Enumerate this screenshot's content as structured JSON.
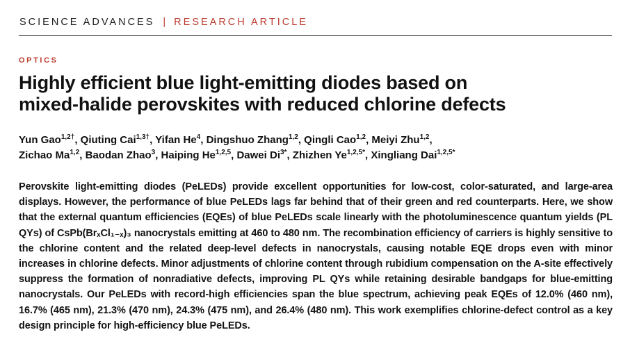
{
  "colors": {
    "accent_red": "#bc3a2e",
    "text_dark": "#111111"
  },
  "masthead": {
    "journal": "SCIENCE ADVANCES",
    "separator": "|",
    "article_type": "RESEARCH ARTICLE"
  },
  "article": {
    "section": "OPTICS",
    "title_lines": [
      "Highly efficient blue light-emitting diodes based on",
      "mixed-halide perovskites with reduced chlorine defects"
    ],
    "author_lines": [
      [
        {
          "name": "Yun Gao",
          "sup": "1,2†"
        },
        {
          "name": "Qiuting Cai",
          "sup": "1,3†"
        },
        {
          "name": "Yifan He",
          "sup": "4"
        },
        {
          "name": "Dingshuo Zhang",
          "sup": "1,2"
        },
        {
          "name": "Qingli Cao",
          "sup": "1,2"
        },
        {
          "name": "Meiyi Zhu",
          "sup": "1,2"
        }
      ],
      [
        {
          "name": "Zichao Ma",
          "sup": "1,2"
        },
        {
          "name": "Baodan Zhao",
          "sup": "3"
        },
        {
          "name": "Haiping He",
          "sup": "1,2,5"
        },
        {
          "name": "Dawei Di",
          "sup": "3*"
        },
        {
          "name": "Zhizhen Ye",
          "sup": "1,2,5*"
        },
        {
          "name": "Xingliang Dai",
          "sup": "1,2,5*"
        }
      ]
    ],
    "abstract": "Perovskite light-emitting diodes (PeLEDs) provide excellent opportunities for low-cost, color-saturated, and large-area displays. However, the performance of blue PeLEDs lags far behind that of their green and red counterparts. Here, we show that the external quantum efficiencies (EQEs) of blue PeLEDs scale linearly with the photoluminescence quantum yields (PL QYs) of CsPb(BrₓCl₁₋ₓ)₃ nanocrystals emitting at 460 to 480 nm. The recombination efficiency of carriers is highly sensitive to the chlorine content and the related deep-level defects in nanocrystals, causing notable EQE drops even with minor increases in chlorine defects. Minor adjustments of chlorine content through rubidium compensation on the A-site effectively suppress the formation of nonradiative defects, improving PL QYs while retaining desirable bandgaps for blue-emitting nanocrystals. Our PeLEDs with record-high efficiencies span the blue spectrum, achieving peak EQEs of 12.0% (460 nm), 16.7% (465 nm), 21.3% (470 nm), 24.3% (475 nm), and 26.4% (480 nm). This work exemplifies chlorine-defect control as a key design principle for high-efficiency blue PeLEDs."
  }
}
